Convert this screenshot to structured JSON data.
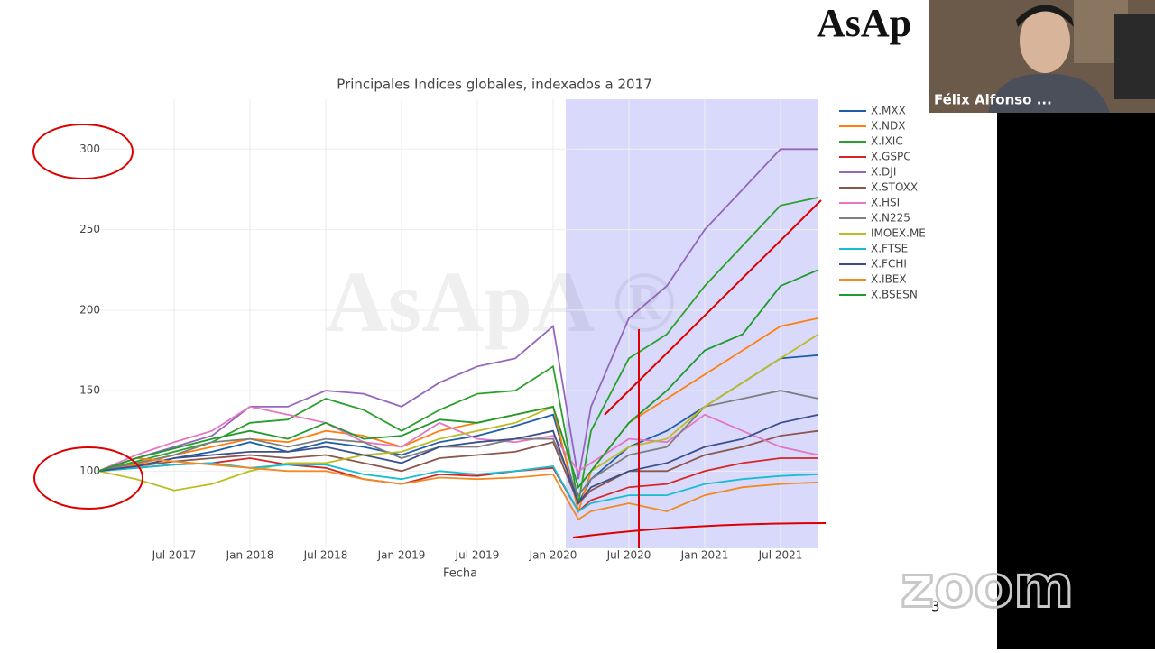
{
  "logo": "AsAp",
  "participant_name": "Félix Alfonso ...",
  "slide_number": "3",
  "zoom_watermark": "zoom",
  "chart_data": {
    "type": "line",
    "title": "Principales Indices globales, indexados a 2017",
    "x_label": "Fecha",
    "watermark": "AsApA ®",
    "x": [
      "2017-01",
      "2017-04",
      "2017-07",
      "2017-10",
      "2018-01",
      "2018-04",
      "2018-07",
      "2018-10",
      "2019-01",
      "2019-04",
      "2019-07",
      "2019-10",
      "2020-01",
      "2020-03",
      "2020-04",
      "2020-07",
      "2020-10",
      "2021-01",
      "2021-04",
      "2021-07",
      "2021-10"
    ],
    "xlim": [
      "2017-01",
      "2021-10"
    ],
    "xticks": [
      {
        "value": "2017-07",
        "label": "Jul 2017"
      },
      {
        "value": "2018-01",
        "label": "Jan 2018"
      },
      {
        "value": "2018-07",
        "label": "Jul 2018"
      },
      {
        "value": "2019-01",
        "label": "Jan 2019"
      },
      {
        "value": "2019-07",
        "label": "Jul 2019"
      },
      {
        "value": "2020-01",
        "label": "Jan 2020"
      },
      {
        "value": "2020-07",
        "label": "Jul 2020"
      },
      {
        "value": "2021-01",
        "label": "Jan 2021"
      },
      {
        "value": "2021-07",
        "label": "Jul 2021"
      }
    ],
    "ylim": [
      52,
      331
    ],
    "yticks": [
      100,
      150,
      200,
      250,
      300
    ],
    "grid": true,
    "highlight_x": [
      "2020-02",
      "2021-10"
    ],
    "highlight_color": "#d9d9fb",
    "series": [
      {
        "name": "X.MXX",
        "color": "#1f5fa8",
        "values": [
          100,
          103,
          108,
          112,
          118,
          112,
          118,
          115,
          110,
          118,
          122,
          128,
          135,
          80,
          95,
          115,
          125,
          140,
          155,
          170,
          172
        ]
      },
      {
        "name": "X.NDX",
        "color": "#ff7f0e",
        "values": [
          100,
          104,
          110,
          115,
          120,
          118,
          125,
          122,
          115,
          125,
          130,
          135,
          140,
          75,
          100,
          130,
          145,
          160,
          175,
          190,
          195
        ]
      },
      {
        "name": "X.IXIC",
        "color": "#2ca02c",
        "values": [
          100,
          106,
          112,
          118,
          130,
          132,
          145,
          138,
          125,
          138,
          148,
          150,
          165,
          80,
          125,
          170,
          185,
          215,
          240,
          265,
          270
        ]
      },
      {
        "name": "X.GSPC",
        "color": "#d62728",
        "values": [
          100,
          102,
          104,
          105,
          108,
          104,
          102,
          95,
          92,
          98,
          97,
          100,
          102,
          75,
          82,
          90,
          92,
          100,
          105,
          108,
          108
        ]
      },
      {
        "name": "X.DJI",
        "color": "#9467bd",
        "values": [
          100,
          108,
          115,
          122,
          140,
          140,
          150,
          148,
          140,
          155,
          165,
          170,
          190,
          95,
          140,
          195,
          215,
          250,
          275,
          300,
          300
        ]
      },
      {
        "name": "X.STOXX",
        "color": "#8c564b",
        "values": [
          100,
          103,
          106,
          108,
          110,
          108,
          110,
          105,
          100,
          108,
          110,
          112,
          118,
          80,
          88,
          100,
          100,
          110,
          115,
          122,
          125
        ]
      },
      {
        "name": "X.HSI",
        "color": "#e377c2",
        "values": [
          100,
          110,
          118,
          125,
          140,
          135,
          130,
          118,
          115,
          130,
          120,
          118,
          122,
          100,
          105,
          120,
          118,
          135,
          125,
          115,
          110
        ]
      },
      {
        "name": "X.N225",
        "color": "#7f7f7f",
        "values": [
          100,
          105,
          110,
          118,
          120,
          115,
          120,
          118,
          108,
          115,
          115,
          120,
          120,
          85,
          95,
          110,
          115,
          140,
          145,
          150,
          145
        ]
      },
      {
        "name": "IMOEX.ME",
        "color": "#bcbd22",
        "values": [
          100,
          95,
          88,
          92,
          100,
          105,
          105,
          110,
          112,
          120,
          125,
          130,
          140,
          90,
          100,
          115,
          120,
          140,
          155,
          170,
          185
        ]
      },
      {
        "name": "X.FTSE",
        "color": "#17becf",
        "values": [
          100,
          102,
          104,
          105,
          102,
          104,
          104,
          98,
          95,
          100,
          98,
          100,
          103,
          75,
          80,
          85,
          85,
          92,
          95,
          97,
          98
        ]
      },
      {
        "name": "X.FCHI",
        "color": "#3b4f8c",
        "values": [
          100,
          103,
          108,
          110,
          112,
          112,
          115,
          110,
          105,
          115,
          118,
          120,
          125,
          80,
          90,
          100,
          105,
          115,
          120,
          130,
          135
        ]
      },
      {
        "name": "X.IBEX",
        "color": "#f08a24",
        "values": [
          100,
          108,
          106,
          104,
          102,
          100,
          100,
          95,
          92,
          96,
          95,
          96,
          98,
          70,
          75,
          80,
          75,
          85,
          90,
          92,
          93
        ]
      },
      {
        "name": "X.BSESN",
        "color": "#1e9a2e",
        "values": [
          100,
          108,
          114,
          120,
          125,
          120,
          130,
          120,
          122,
          132,
          130,
          135,
          140,
          90,
          100,
          130,
          150,
          175,
          185,
          215,
          225
        ]
      }
    ]
  }
}
